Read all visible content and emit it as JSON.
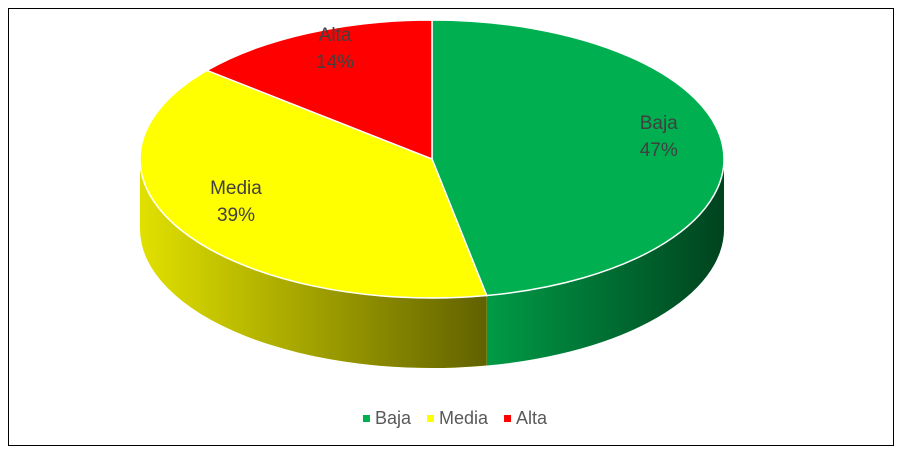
{
  "chart_data": {
    "type": "pie3d",
    "categories": [
      "Baja",
      "Media",
      "Alta"
    ],
    "values": [
      47,
      39,
      14
    ],
    "value_labels": [
      "47%",
      "39%",
      "14%"
    ],
    "colors": [
      "#00b050",
      "#ffff00",
      "#ff0000"
    ],
    "legend": "bottom"
  }
}
